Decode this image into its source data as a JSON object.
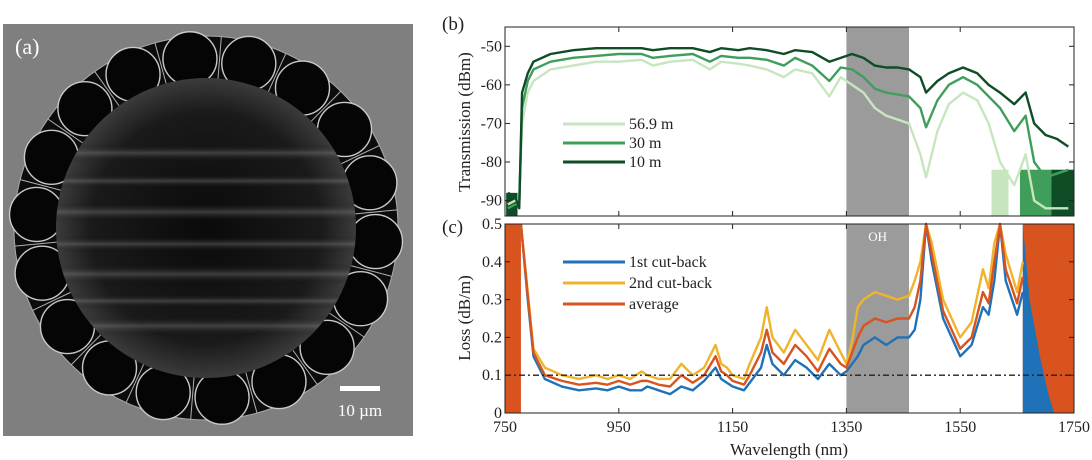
{
  "figure": {
    "panel_a": {
      "label": "(a)",
      "scale_bar_label": "10 µm",
      "tube_count": 18
    },
    "shaded_band": {
      "label": "OH",
      "x_range": [
        1350,
        1460
      ],
      "color": "#9b9b9b"
    }
  },
  "chart_data": [
    {
      "id": "b",
      "panel_label": "(b)",
      "type": "line",
      "title": "",
      "xlabel": "",
      "ylabel": "Transmission (dBm)",
      "xlim": [
        750,
        1750
      ],
      "ylim": [
        -94,
        -45
      ],
      "xticks": [
        750,
        950,
        1150,
        1350,
        1550,
        1750
      ],
      "yticks": [
        -50,
        -60,
        -70,
        -80,
        -90
      ],
      "ytick_labels": [
        "-50",
        "-60",
        "-70",
        "-80",
        "-90"
      ],
      "grid": false,
      "legend_position": "center-left",
      "x": [
        755,
        768,
        775,
        780,
        790,
        800,
        830,
        870,
        910,
        950,
        990,
        1010,
        1040,
        1080,
        1110,
        1130,
        1160,
        1180,
        1210,
        1240,
        1260,
        1290,
        1320,
        1340,
        1360,
        1380,
        1400,
        1420,
        1440,
        1460,
        1480,
        1490,
        1510,
        1530,
        1555,
        1580,
        1600,
        1620,
        1645,
        1665,
        1680,
        1700,
        1720,
        1740
      ],
      "series": [
        {
          "name": "56.9 m",
          "color": "#c7e6c0",
          "values": [
            -91,
            -90,
            -90,
            -70,
            -62,
            -59,
            -56,
            -55,
            -54,
            -54,
            -53.5,
            -55,
            -54,
            -53.5,
            -56,
            -54,
            -54.5,
            -55,
            -56,
            -58,
            -56,
            -57,
            -63,
            -58,
            -60,
            -62,
            -66,
            -68,
            -69,
            -70,
            -78,
            -84,
            -72,
            -65,
            -62,
            -64,
            -70,
            -80,
            -86,
            -78,
            -90,
            -92,
            -92,
            -92
          ]
        },
        {
          "name": "30 m",
          "color": "#3f9f5a",
          "values": [
            -92,
            -91,
            -91,
            -66,
            -59,
            -56,
            -54,
            -53,
            -52.5,
            -52,
            -52,
            -53,
            -52.5,
            -52,
            -54,
            -52.5,
            -53,
            -53,
            -53.5,
            -55,
            -53,
            -55,
            -59,
            -55.5,
            -56,
            -58,
            -61,
            -62,
            -62.5,
            -63,
            -66,
            -71,
            -64,
            -60,
            -58,
            -60,
            -63,
            -66,
            -72,
            -68,
            -80,
            -84,
            -83,
            -82
          ]
        },
        {
          "name": "10 m",
          "color": "#0e4d26",
          "values": [
            -88,
            -89,
            -92,
            -62,
            -57,
            -54,
            -52,
            -51,
            -50.5,
            -50.5,
            -50.5,
            -51,
            -50.5,
            -50.5,
            -51.5,
            -50.5,
            -51,
            -50.5,
            -51,
            -52,
            -51,
            -51.5,
            -54,
            -53,
            -52,
            -53,
            -55,
            -55.5,
            -55.5,
            -56,
            -58,
            -62,
            -59,
            -57,
            -55.5,
            -57,
            -60,
            -62,
            -65,
            -62,
            -70,
            -73,
            -74,
            -76
          ]
        }
      ],
      "noise_floor_fill": [
        {
          "series": "56.9 m",
          "x_range": [
            1605,
            1635
          ]
        },
        {
          "series": "30 m",
          "x_range": [
            1655,
            1710
          ]
        },
        {
          "series": "10 m",
          "x_range": [
            1710,
            1750
          ]
        }
      ]
    },
    {
      "id": "c",
      "panel_label": "(c)",
      "type": "line",
      "title": "",
      "xlabel": "Wavelength (nm)",
      "ylabel": "Loss (dB/m)",
      "xlim": [
        750,
        1750
      ],
      "ylim": [
        0,
        0.5
      ],
      "xticks": [
        750,
        950,
        1150,
        1350,
        1550,
        1750
      ],
      "xtick_labels": [
        "750",
        "950",
        "1150",
        "1350",
        "1550",
        "1750"
      ],
      "yticks": [
        0,
        0.1,
        0.2,
        0.3,
        0.4,
        0.5
      ],
      "ytick_labels": [
        "0",
        "0.1",
        "0.2",
        "0.3",
        "0.4",
        "0.5"
      ],
      "grid": false,
      "legend_position": "upper-left",
      "reference_line": {
        "y": 0.1,
        "style": "dash-dot",
        "color": "#222222"
      },
      "x": [
        778,
        790,
        800,
        820,
        850,
        880,
        910,
        930,
        950,
        970,
        990,
        1000,
        1020,
        1040,
        1060,
        1080,
        1100,
        1120,
        1130,
        1140,
        1150,
        1170,
        1180,
        1200,
        1210,
        1220,
        1240,
        1260,
        1280,
        1300,
        1320,
        1340,
        1350,
        1360,
        1370,
        1380,
        1400,
        1420,
        1440,
        1460,
        1470,
        1480,
        1490,
        1500,
        1520,
        1550,
        1570,
        1590,
        1600,
        1610,
        1620,
        1630,
        1650,
        1660
      ],
      "series": [
        {
          "name": "1st cut-back",
          "color": "#1f72b8",
          "values": [
            0.5,
            0.3,
            0.15,
            0.09,
            0.07,
            0.06,
            0.065,
            0.06,
            0.07,
            0.06,
            0.06,
            0.07,
            0.06,
            0.05,
            0.07,
            0.06,
            0.085,
            0.12,
            0.09,
            0.08,
            0.07,
            0.06,
            0.08,
            0.12,
            0.18,
            0.13,
            0.1,
            0.14,
            0.12,
            0.09,
            0.13,
            0.1,
            0.11,
            0.13,
            0.15,
            0.18,
            0.2,
            0.18,
            0.2,
            0.2,
            0.22,
            0.3,
            0.5,
            0.4,
            0.25,
            0.15,
            0.18,
            0.28,
            0.26,
            0.35,
            0.5,
            0.35,
            0.26,
            0.32
          ]
        },
        {
          "name": "2nd cut-back",
          "color": "#f0b42c",
          "values": [
            0.5,
            0.32,
            0.17,
            0.12,
            0.1,
            0.09,
            0.1,
            0.09,
            0.1,
            0.09,
            0.11,
            0.1,
            0.09,
            0.09,
            0.13,
            0.1,
            0.12,
            0.18,
            0.13,
            0.12,
            0.1,
            0.09,
            0.13,
            0.2,
            0.28,
            0.2,
            0.16,
            0.22,
            0.18,
            0.14,
            0.22,
            0.16,
            0.13,
            0.19,
            0.28,
            0.3,
            0.32,
            0.31,
            0.3,
            0.31,
            0.35,
            0.4,
            0.5,
            0.45,
            0.3,
            0.2,
            0.24,
            0.38,
            0.33,
            0.45,
            0.5,
            0.42,
            0.32,
            0.4
          ]
        },
        {
          "name": "average",
          "color": "#d9531e",
          "values": [
            0.5,
            0.31,
            0.16,
            0.1,
            0.085,
            0.075,
            0.08,
            0.075,
            0.085,
            0.075,
            0.085,
            0.085,
            0.075,
            0.07,
            0.1,
            0.08,
            0.1,
            0.15,
            0.11,
            0.1,
            0.085,
            0.075,
            0.1,
            0.16,
            0.22,
            0.16,
            0.13,
            0.18,
            0.15,
            0.11,
            0.17,
            0.13,
            0.12,
            0.16,
            0.2,
            0.23,
            0.25,
            0.24,
            0.25,
            0.25,
            0.28,
            0.35,
            0.5,
            0.42,
            0.27,
            0.17,
            0.2,
            0.32,
            0.29,
            0.4,
            0.5,
            0.38,
            0.29,
            0.36
          ]
        }
      ],
      "out_of_range_fill": [
        {
          "series": "average",
          "x_range": [
            750,
            778
          ]
        },
        {
          "series": "1st cut-back",
          "x_range": [
            1660,
            1715
          ]
        },
        {
          "series": "average",
          "x_range": [
            1660,
            1750
          ]
        }
      ]
    }
  ]
}
